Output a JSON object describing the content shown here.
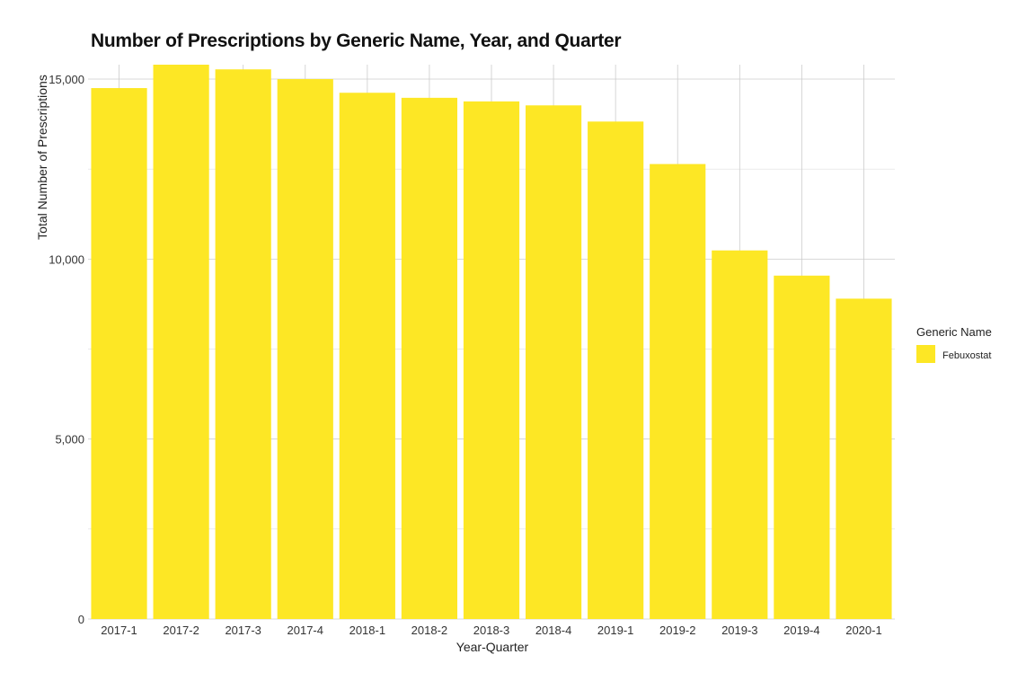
{
  "chart_data": {
    "type": "bar",
    "title": "Number of Prescriptions by Generic Name, Year, and Quarter",
    "xlabel": "Year-Quarter",
    "ylabel": "Total Number of Prescriptions",
    "categories": [
      "2017-1",
      "2017-2",
      "2017-3",
      "2017-4",
      "2018-1",
      "2018-2",
      "2018-3",
      "2018-4",
      "2019-1",
      "2019-2",
      "2019-3",
      "2019-4",
      "2020-1"
    ],
    "series": [
      {
        "name": "Febuxostat",
        "color": "#FDE725",
        "values": [
          14750,
          15400,
          15270,
          15000,
          14620,
          14480,
          14380,
          14270,
          13820,
          12640,
          10240,
          9540,
          8900
        ]
      }
    ],
    "ylim": [
      0,
      15400
    ],
    "y_ticks": [
      0,
      5000,
      10000,
      15000
    ],
    "y_tick_labels": [
      "0",
      "5,000",
      "10,000",
      "15,000"
    ],
    "grid": true,
    "legend": {
      "title": "Generic Name",
      "position": "right"
    }
  }
}
